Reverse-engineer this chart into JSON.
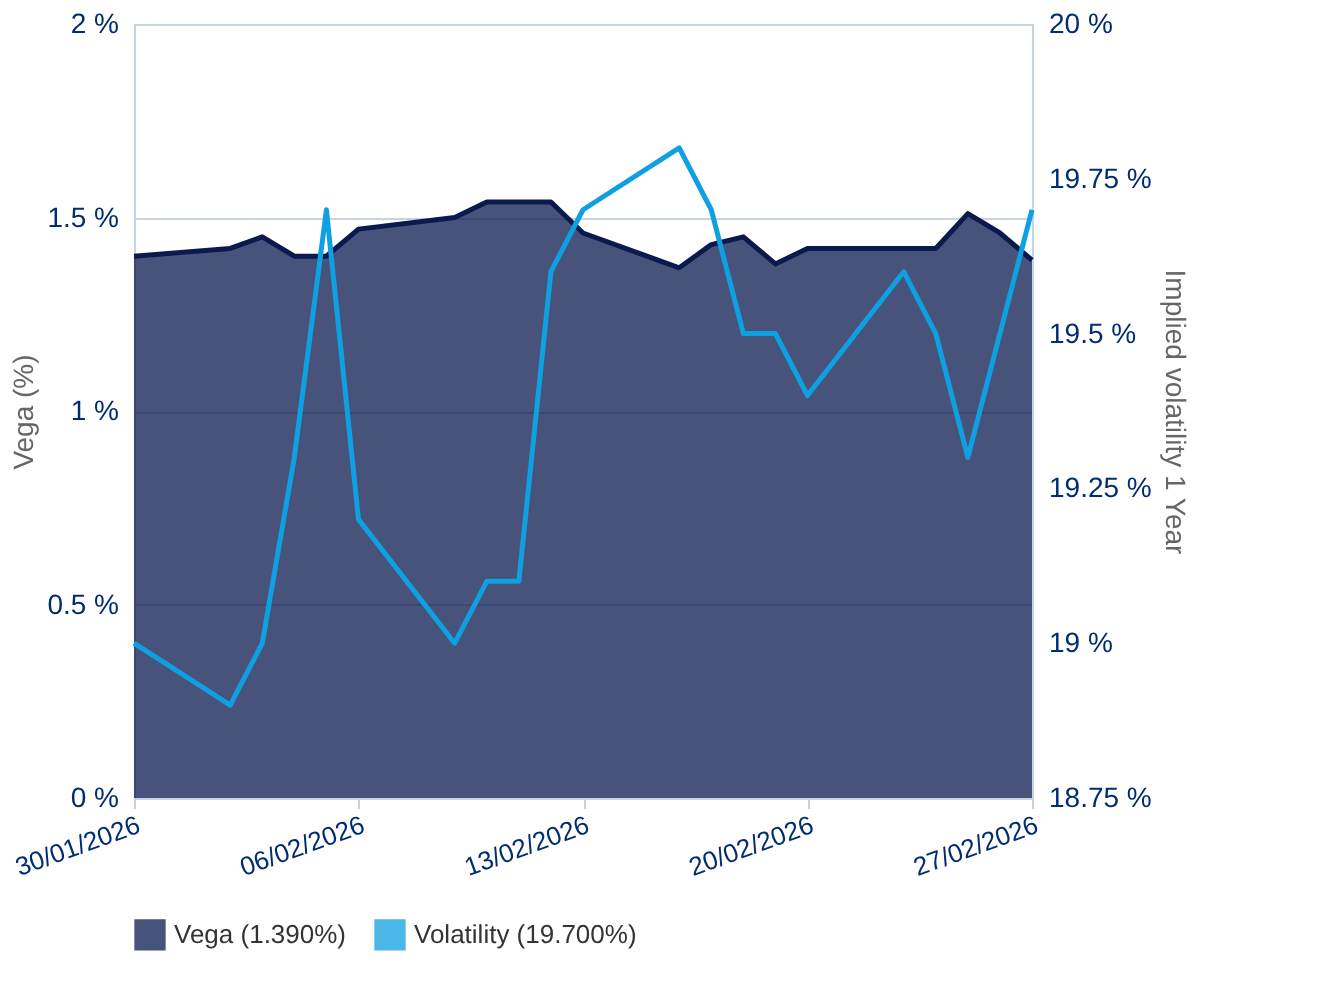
{
  "chart_data": {
    "type": "area",
    "ylabel": "Vega (%)",
    "y2label": "Implied volatility 1 Year",
    "x": [
      "2026-01-30",
      "2026-02-02",
      "2026-02-03",
      "2026-02-04",
      "2026-02-05",
      "2026-02-06",
      "2026-02-09",
      "2026-02-10",
      "2026-02-11",
      "2026-02-12",
      "2026-02-13",
      "2026-02-16",
      "2026-02-17",
      "2026-02-18",
      "2026-02-19",
      "2026-02-20",
      "2026-02-23",
      "2026-02-24",
      "2026-02-25",
      "2026-02-26",
      "2026-02-27"
    ],
    "series": [
      {
        "name": "Vega (1.390%)",
        "color": "#0a1a4f",
        "values": [
          1.4,
          1.42,
          1.45,
          1.4,
          1.4,
          1.47,
          1.5,
          1.54,
          1.54,
          1.54,
          1.46,
          1.37,
          1.43,
          1.45,
          1.38,
          1.42,
          1.42,
          1.42,
          1.51,
          1.46,
          1.39
        ]
      },
      {
        "name": "Volatility (19.700%)",
        "type": "line",
        "axis": "y2",
        "color": "#0ea0e0",
        "values": [
          19.0,
          18.9,
          19.0,
          19.3,
          19.7,
          19.2,
          19.0,
          19.1,
          19.1,
          19.6,
          19.7,
          19.8,
          19.7,
          19.5,
          19.5,
          19.4,
          19.6,
          19.5,
          19.3,
          19.5,
          19.7
        ]
      }
    ],
    "xlim": [
      "2026-01-30",
      "2026-02-27"
    ],
    "xticks": [
      {
        "value": "2026-01-30",
        "label": "30/01/2026"
      },
      {
        "value": "2026-02-06",
        "label": "06/02/2026"
      },
      {
        "value": "2026-02-13",
        "label": "13/02/2026"
      },
      {
        "value": "2026-02-20",
        "label": "20/02/2026"
      },
      {
        "value": "2026-02-27",
        "label": "27/02/2026"
      }
    ],
    "ylim": [
      0,
      2
    ],
    "yticks": [
      {
        "value": 0,
        "label": "0 %"
      },
      {
        "value": 0.5,
        "label": "0.5 %"
      },
      {
        "value": 1,
        "label": "1 %"
      },
      {
        "value": 1.5,
        "label": "1.5 %"
      },
      {
        "value": 2,
        "label": "2 %"
      }
    ],
    "y2lim": [
      18.75,
      20
    ],
    "y2ticks": [
      {
        "value": 18.75,
        "label": "18.75 %"
      },
      {
        "value": 19,
        "label": "19 %"
      },
      {
        "value": 19.25,
        "label": "19.25 %"
      },
      {
        "value": 19.5,
        "label": "19.5 %"
      },
      {
        "value": 19.75,
        "label": "19.75 %"
      },
      {
        "value": 20,
        "label": "20 %"
      }
    ],
    "grid": "y",
    "legend": "bottom",
    "marker": "none",
    "line_style": "solid"
  }
}
